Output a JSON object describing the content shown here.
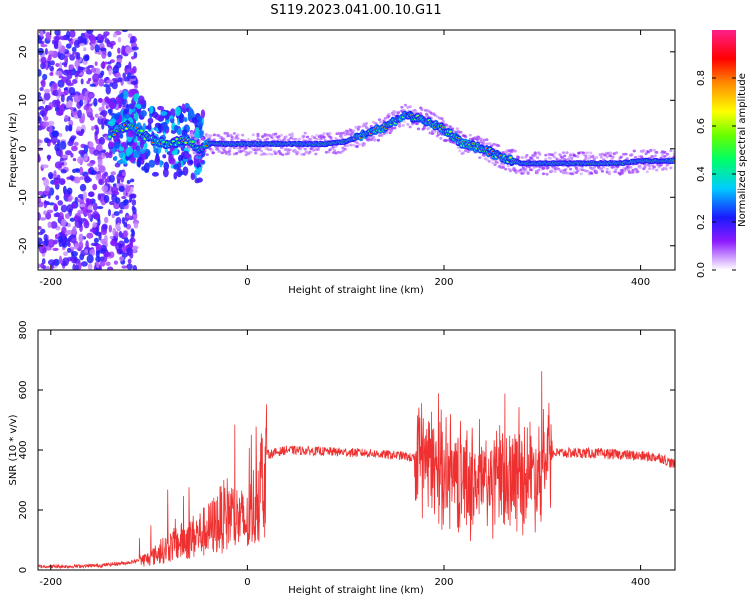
{
  "title": "S119.2023.041.00.10.G11",
  "chart_data": [
    {
      "type": "heatmap",
      "xlabel": "Height of straight line (km)",
      "ylabel": "Frequency (Hz)",
      "xlim": [
        -213,
        435
      ],
      "ylim": [
        -25,
        24.5
      ],
      "xticks": [
        -200,
        0,
        200,
        400
      ],
      "yticks": [
        -20,
        -10,
        0,
        10,
        20
      ],
      "colorbar": {
        "label": "Normalized spectral amplitude",
        "range": [
          0,
          1
        ],
        "ticks": [
          0.0,
          0.2,
          0.4,
          0.6,
          0.8
        ],
        "tick_labels": [
          "0.0",
          "0.2",
          "0.4",
          "0.6",
          "0.8"
        ]
      },
      "ridge": {
        "x": [
          -140,
          -120,
          -100,
          -80,
          -60,
          -50,
          -40,
          -20,
          0,
          20,
          40,
          60,
          80,
          100,
          120,
          140,
          160,
          180,
          200,
          220,
          240,
          260,
          280,
          300,
          320,
          340,
          360,
          380,
          400,
          435
        ],
        "y": [
          3,
          5,
          2,
          1,
          2,
          0,
          1,
          1,
          1,
          1,
          1,
          1,
          1,
          1.5,
          3,
          4.5,
          7,
          6,
          4,
          1,
          0,
          -2,
          -3,
          -3,
          -3,
          -3,
          -3,
          -3,
          -2.5,
          -2.5
        ]
      }
    },
    {
      "type": "line",
      "xlabel": "Height of straight line (km)",
      "ylabel": "SNR (10 * v/v)",
      "xlim": [
        -213,
        435
      ],
      "ylim": [
        0,
        800
      ],
      "xticks": [
        -200,
        0,
        200,
        400
      ],
      "yticks": [
        0,
        200,
        400,
        600,
        800
      ],
      "color": "#ee3030",
      "envelope": {
        "x": [
          -213,
          -180,
          -150,
          -120,
          -100,
          -80,
          -60,
          -40,
          -20,
          0,
          10,
          20,
          40,
          80,
          120,
          160,
          180,
          200,
          220,
          240,
          260,
          280,
          300,
          310,
          340,
          380,
          420,
          435
        ],
        "y": [
          12,
          12,
          15,
          25,
          40,
          80,
          110,
          140,
          200,
          160,
          260,
          385,
          400,
          395,
          390,
          380,
          360,
          330,
          300,
          290,
          300,
          320,
          340,
          390,
          390,
          385,
          375,
          350
        ]
      }
    }
  ]
}
